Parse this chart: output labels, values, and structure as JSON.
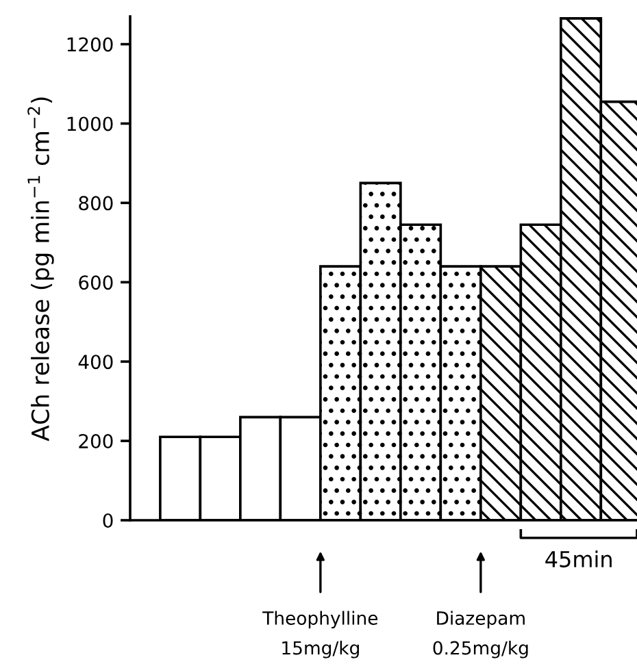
{
  "chart_data": {
    "type": "bar",
    "categories": [
      null,
      null,
      null,
      null,
      null,
      null,
      null,
      null,
      null,
      null,
      null,
      null
    ],
    "values": [
      210,
      210,
      260,
      260,
      640,
      850,
      745,
      640,
      640,
      745,
      1265,
      1055
    ],
    "color": "#ffffff",
    "ylabel": "ACh release (pg min$^{−1}$ cm$^{−2}$)",
    "ylim": [
      0,
      1270
    ],
    "yticks": [
      0,
      200,
      400,
      600,
      800,
      1000,
      1200
    ],
    "tick_labels": "y",
    "grid": false,
    "legend": false,
    "annotations": [
      "Theophylline\n15mg/kg",
      "Diazepam\n0.25mg/kg",
      "45min"
    ]
  }
}
